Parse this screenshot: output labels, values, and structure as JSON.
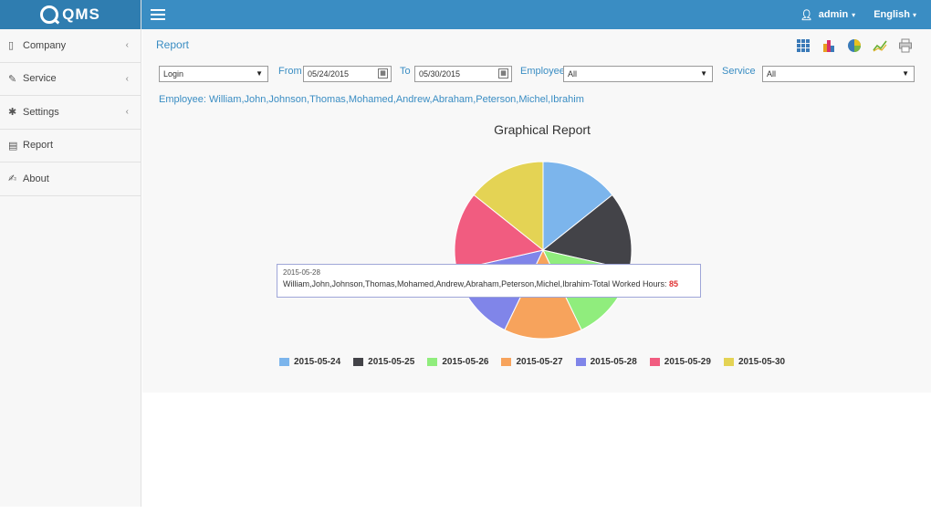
{
  "brand": {
    "name": "QMS"
  },
  "header": {
    "user": "admin",
    "language": "English"
  },
  "sidebar": {
    "items": [
      {
        "label": "Company",
        "icon": "tablet-icon",
        "has_children": true
      },
      {
        "label": "Service",
        "icon": "wrench-icon",
        "has_children": true
      },
      {
        "label": "Settings",
        "icon": "gear-icon",
        "has_children": true
      },
      {
        "label": "Report",
        "icon": "file-icon",
        "has_children": false
      },
      {
        "label": "About",
        "icon": "edit-icon",
        "has_children": false
      }
    ]
  },
  "page": {
    "title": "Report",
    "tools": [
      "grid-chart-icon",
      "bar-chart-icon",
      "pie-chart-icon",
      "line-chart-icon",
      "print-icon"
    ]
  },
  "filters": {
    "type_value": "Login",
    "from_label": "From",
    "from_value": "05/24/2015",
    "to_label": "To",
    "to_value": "05/30/2015",
    "employee_label": "Employee",
    "employee_value": "All",
    "service_label": "Service",
    "service_value": "All"
  },
  "employee_line": "Employee: William,John,Johnson,Thomas,Mohamed,Andrew,Abraham,Peterson,Michel,Ibrahim",
  "tooltip": {
    "date": "2015-05-28",
    "text": "William,John,Johnson,Thomas,Mohamed,Andrew,Abraham,Peterson,Michel,Ibrahim-Total Worked Hours:",
    "value": "85"
  },
  "colors": {
    "topbar": "#3a8dc3",
    "brand": "#2f7db0",
    "accent": "#3a8dc3"
  },
  "chart_data": {
    "type": "pie",
    "title": "Graphical Report",
    "legend": "bottom",
    "categories": [
      "2015-05-24",
      "2015-05-25",
      "2015-05-26",
      "2015-05-27",
      "2015-05-28",
      "2015-05-29",
      "2015-05-30"
    ],
    "values": [
      85,
      85,
      85,
      85,
      85,
      85,
      85
    ],
    "colors": [
      "#7cb5ec",
      "#434348",
      "#90ed7d",
      "#f7a35c",
      "#8085e9",
      "#f15c80",
      "#e4d354"
    ]
  }
}
